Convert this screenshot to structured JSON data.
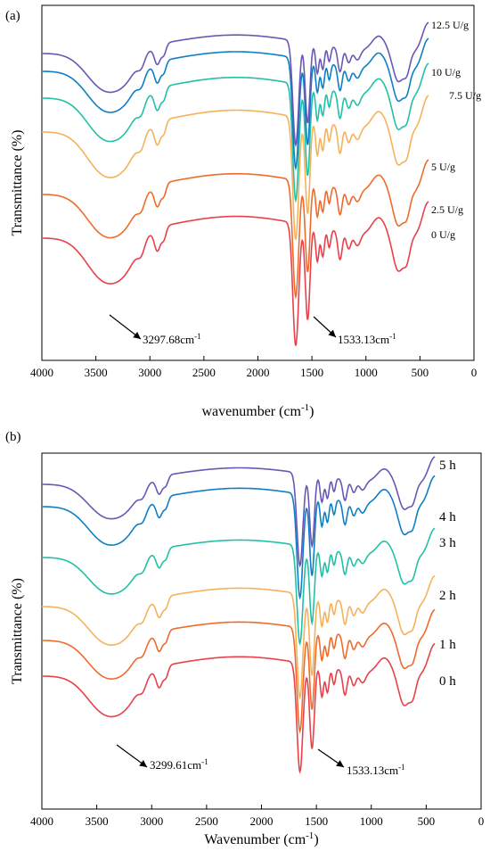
{
  "chart_data": [
    {
      "type": "line",
      "panel_label": "(a)",
      "xlabel": "wavenumber (cm",
      "xlabel_sup": "-1",
      "xlabel_end": ")",
      "ylabel": "Transmittance (%)",
      "xlim": [
        4000,
        0
      ],
      "x_reversed": true,
      "xticks": [
        4000,
        3500,
        3000,
        2500,
        2000,
        1500,
        1000,
        500,
        0
      ],
      "yticks": false,
      "grid": false,
      "legend": "inline labels at right end of each series",
      "series": [
        {
          "name": "0 U/g",
          "color": "#e8414a",
          "offset": 0
        },
        {
          "name": "2.5 U/g",
          "color": "#ef6b2b",
          "offset": 1
        },
        {
          "name": "5 U/g",
          "color": "#f5b25c",
          "offset": 2
        },
        {
          "name": "7.5 U/g",
          "color": "#22c0a6",
          "offset": 3
        },
        {
          "name": "10 U/g",
          "color": "#0e7fc4",
          "offset": 4
        },
        {
          "name": "12.5 U/g",
          "color": "#6a57b5",
          "offset": 5
        }
      ],
      "annotations": [
        {
          "text": "3297.68cm",
          "sup": "-1",
          "x": 3297.68
        },
        {
          "text": "1533.13cm",
          "sup": "-1",
          "x": 1533.13
        }
      ]
    },
    {
      "type": "line",
      "panel_label": "(b)",
      "xlabel": "Wavenumber (cm",
      "xlabel_sup": "-1",
      "xlabel_end": ")",
      "ylabel": "Transmittance (%)",
      "xlim": [
        4000,
        0
      ],
      "x_reversed": true,
      "xticks": [
        4000,
        3500,
        3000,
        2500,
        2000,
        1500,
        1000,
        500,
        0
      ],
      "yticks": false,
      "grid": false,
      "legend": "inline labels at right end of each series",
      "series": [
        {
          "name": "0 h",
          "color": "#e8414a",
          "offset": 0
        },
        {
          "name": "1 h",
          "color": "#ef6b2b",
          "offset": 1
        },
        {
          "name": "2 h",
          "color": "#f5b25c",
          "offset": 2
        },
        {
          "name": "3 h",
          "color": "#22c0a6",
          "offset": 3
        },
        {
          "name": "4 h",
          "color": "#0e7fc4",
          "offset": 4
        },
        {
          "name": "5 h",
          "color": "#6a57b5",
          "offset": 5
        }
      ],
      "annotations": [
        {
          "text": "3299.61cm",
          "sup": "-1",
          "x": 3299.61
        },
        {
          "text": "1533.13cm",
          "sup": "-1",
          "x": 1533.13
        }
      ]
    }
  ]
}
